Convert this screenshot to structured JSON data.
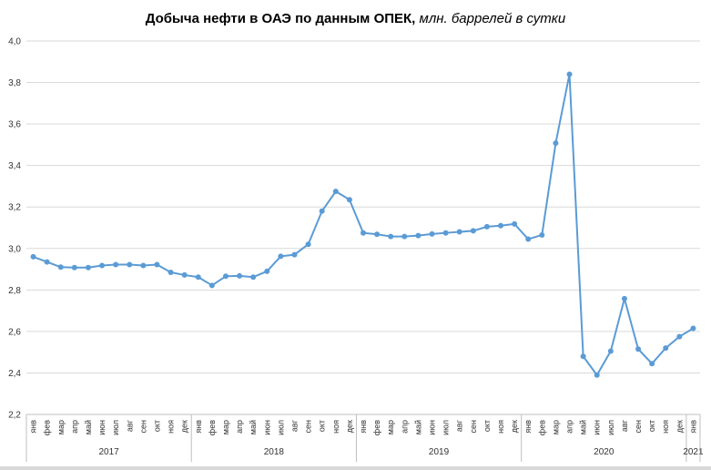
{
  "chart_data": {
    "type": "line",
    "title": "Добыча нефти в ОАЭ по данным ОПЕК,",
    "subtitle": "млн. баррелей в сутки",
    "xlabel": "",
    "ylabel": "",
    "ylim": [
      2.2,
      4.0
    ],
    "yticks": [
      "2,2",
      "2,4",
      "2,6",
      "2,8",
      "3,0",
      "3,2",
      "3,4",
      "3,6",
      "3,8",
      "4,0"
    ],
    "grid": true,
    "legend": "none",
    "color": "#5b9bd5",
    "years": [
      {
        "label": "2017",
        "start": 0,
        "count": 12
      },
      {
        "label": "2018",
        "start": 12,
        "count": 12
      },
      {
        "label": "2019",
        "start": 24,
        "count": 12
      },
      {
        "label": "2020",
        "start": 36,
        "count": 12
      },
      {
        "label": "2021",
        "start": 48,
        "count": 1
      }
    ],
    "categories": [
      "янв",
      "фев",
      "мар",
      "апр",
      "май",
      "июн",
      "июл",
      "авг",
      "сен",
      "окт",
      "ноя",
      "дек",
      "янв",
      "фев",
      "мар",
      "апр",
      "май",
      "июн",
      "июл",
      "авг",
      "сен",
      "окт",
      "ноя",
      "дек",
      "янв",
      "фев",
      "мар",
      "апр",
      "май",
      "июн",
      "июл",
      "авг",
      "сен",
      "окт",
      "ноя",
      "дек",
      "янв",
      "фев",
      "мар",
      "апр",
      "май",
      "июн",
      "июл",
      "авг",
      "сен",
      "окт",
      "ноя",
      "дек",
      "янв"
    ],
    "values": [
      2.96,
      2.935,
      2.91,
      2.908,
      2.908,
      2.918,
      2.922,
      2.922,
      2.918,
      2.922,
      2.885,
      2.872,
      2.862,
      2.822,
      2.866,
      2.868,
      2.862,
      2.89,
      2.962,
      2.97,
      3.02,
      3.18,
      3.275,
      3.235,
      3.075,
      3.068,
      3.058,
      3.058,
      3.062,
      3.07,
      3.075,
      3.08,
      3.085,
      3.105,
      3.11,
      3.118,
      3.045,
      3.065,
      3.508,
      3.84,
      2.48,
      2.39,
      2.505,
      2.758,
      2.515,
      2.445,
      2.52,
      2.575,
      2.615
    ]
  }
}
